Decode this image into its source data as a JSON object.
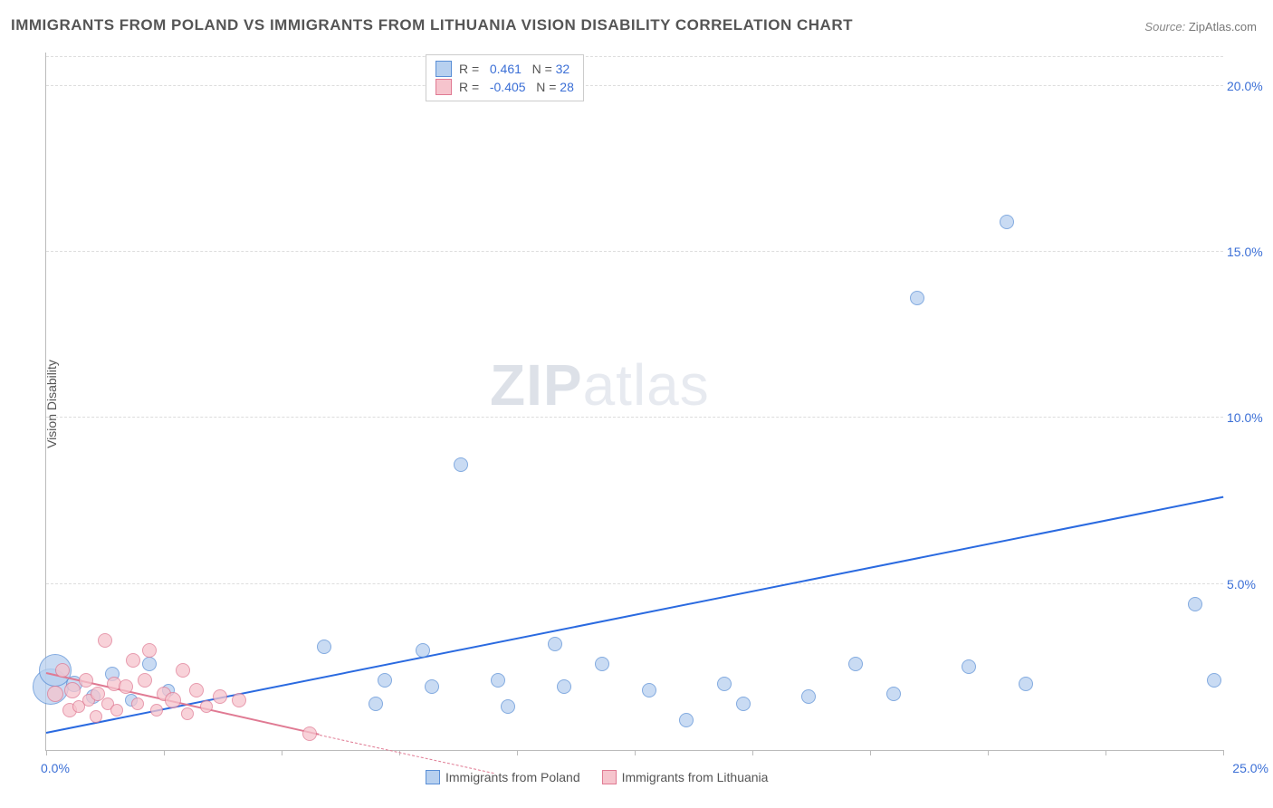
{
  "title": "IMMIGRANTS FROM POLAND VS IMMIGRANTS FROM LITHUANIA VISION DISABILITY CORRELATION CHART",
  "source_label": "Source:",
  "source_value": "ZipAtlas.com",
  "ylabel": "Vision Disability",
  "watermark_a": "ZIP",
  "watermark_b": "atlas",
  "chart": {
    "type": "scatter",
    "xlim": [
      0,
      25
    ],
    "ylim": [
      0,
      21
    ],
    "y_ticks": [
      5,
      10,
      15,
      20
    ],
    "y_tick_labels": [
      "5.0%",
      "10.0%",
      "15.0%",
      "20.0%"
    ],
    "x_tick_positions": [
      0,
      2.5,
      5,
      7.5,
      10,
      12.5,
      15,
      17.5,
      20,
      22.5,
      25
    ],
    "x_start_label": "0.0%",
    "x_end_label": "25.0%",
    "background_color": "#ffffff",
    "grid_color": "#dddddd",
    "axis_color": "#bbbbbb",
    "series": [
      {
        "name": "Immigrants from Poland",
        "fill": "#b7d0ef",
        "stroke": "#5a8fd6",
        "line_color": "#2a6ae0",
        "R": "0.461",
        "N": "32",
        "trend": {
          "x1": 0,
          "y1": 0.5,
          "x2": 25,
          "y2": 7.6,
          "dashed": false
        },
        "points": [
          {
            "x": 0.1,
            "y": 1.9,
            "r": 20
          },
          {
            "x": 0.2,
            "y": 2.4,
            "r": 18
          },
          {
            "x": 0.6,
            "y": 2.0,
            "r": 9
          },
          {
            "x": 1.0,
            "y": 1.6,
            "r": 8
          },
          {
            "x": 1.4,
            "y": 2.3,
            "r": 8
          },
          {
            "x": 1.8,
            "y": 1.5,
            "r": 7
          },
          {
            "x": 2.2,
            "y": 2.6,
            "r": 8
          },
          {
            "x": 2.6,
            "y": 1.8,
            "r": 7
          },
          {
            "x": 5.9,
            "y": 3.1,
            "r": 8
          },
          {
            "x": 7.0,
            "y": 1.4,
            "r": 8
          },
          {
            "x": 7.2,
            "y": 2.1,
            "r": 8
          },
          {
            "x": 8.0,
            "y": 3.0,
            "r": 8
          },
          {
            "x": 8.2,
            "y": 1.9,
            "r": 8
          },
          {
            "x": 8.8,
            "y": 8.6,
            "r": 8
          },
          {
            "x": 9.6,
            "y": 2.1,
            "r": 8
          },
          {
            "x": 9.8,
            "y": 1.3,
            "r": 8
          },
          {
            "x": 10.8,
            "y": 3.2,
            "r": 8
          },
          {
            "x": 11.0,
            "y": 1.9,
            "r": 8
          },
          {
            "x": 11.8,
            "y": 2.6,
            "r": 8
          },
          {
            "x": 12.8,
            "y": 1.8,
            "r": 8
          },
          {
            "x": 13.6,
            "y": 0.9,
            "r": 8
          },
          {
            "x": 14.4,
            "y": 2.0,
            "r": 8
          },
          {
            "x": 14.8,
            "y": 1.4,
            "r": 8
          },
          {
            "x": 16.2,
            "y": 1.6,
            "r": 8
          },
          {
            "x": 17.2,
            "y": 2.6,
            "r": 8
          },
          {
            "x": 18.0,
            "y": 1.7,
            "r": 8
          },
          {
            "x": 18.5,
            "y": 13.6,
            "r": 8
          },
          {
            "x": 19.6,
            "y": 2.5,
            "r": 8
          },
          {
            "x": 20.4,
            "y": 15.9,
            "r": 8
          },
          {
            "x": 20.8,
            "y": 2.0,
            "r": 8
          },
          {
            "x": 24.4,
            "y": 4.4,
            "r": 8
          },
          {
            "x": 24.8,
            "y": 2.1,
            "r": 8
          }
        ]
      },
      {
        "name": "Immigrants from Lithuania",
        "fill": "#f6c4cd",
        "stroke": "#e07a93",
        "line_color": "#e07a93",
        "R": "-0.405",
        "N": "28",
        "trend": {
          "x1": 0,
          "y1": 2.3,
          "x2": 5.8,
          "y2": 0.45,
          "dashed": false
        },
        "trend_ext": {
          "x1": 5.8,
          "y1": 0.45,
          "x2": 9.5,
          "y2": -0.7,
          "dashed": true
        },
        "points": [
          {
            "x": 0.2,
            "y": 1.7,
            "r": 9
          },
          {
            "x": 0.35,
            "y": 2.4,
            "r": 8
          },
          {
            "x": 0.5,
            "y": 1.2,
            "r": 8
          },
          {
            "x": 0.55,
            "y": 1.8,
            "r": 9
          },
          {
            "x": 0.7,
            "y": 1.3,
            "r": 7
          },
          {
            "x": 0.85,
            "y": 2.1,
            "r": 8
          },
          {
            "x": 0.9,
            "y": 1.5,
            "r": 7
          },
          {
            "x": 1.05,
            "y": 1.0,
            "r": 7
          },
          {
            "x": 1.1,
            "y": 1.7,
            "r": 8
          },
          {
            "x": 1.25,
            "y": 3.3,
            "r": 8
          },
          {
            "x": 1.3,
            "y": 1.4,
            "r": 7
          },
          {
            "x": 1.45,
            "y": 2.0,
            "r": 8
          },
          {
            "x": 1.5,
            "y": 1.2,
            "r": 7
          },
          {
            "x": 1.7,
            "y": 1.9,
            "r": 8
          },
          {
            "x": 1.85,
            "y": 2.7,
            "r": 8
          },
          {
            "x": 1.95,
            "y": 1.4,
            "r": 7
          },
          {
            "x": 2.1,
            "y": 2.1,
            "r": 8
          },
          {
            "x": 2.2,
            "y": 3.0,
            "r": 8
          },
          {
            "x": 2.35,
            "y": 1.2,
            "r": 7
          },
          {
            "x": 2.5,
            "y": 1.7,
            "r": 8
          },
          {
            "x": 2.7,
            "y": 1.5,
            "r": 9
          },
          {
            "x": 2.9,
            "y": 2.4,
            "r": 8
          },
          {
            "x": 3.0,
            "y": 1.1,
            "r": 7
          },
          {
            "x": 3.2,
            "y": 1.8,
            "r": 8
          },
          {
            "x": 3.4,
            "y": 1.3,
            "r": 7
          },
          {
            "x": 3.7,
            "y": 1.6,
            "r": 8
          },
          {
            "x": 4.1,
            "y": 1.5,
            "r": 8
          },
          {
            "x": 5.6,
            "y": 0.5,
            "r": 8
          }
        ]
      }
    ],
    "legend_top": {
      "R_label": "R =",
      "N_label": "N ="
    },
    "legend_bottom_labels": [
      "Immigrants from Poland",
      "Immigrants from Lithuania"
    ]
  }
}
